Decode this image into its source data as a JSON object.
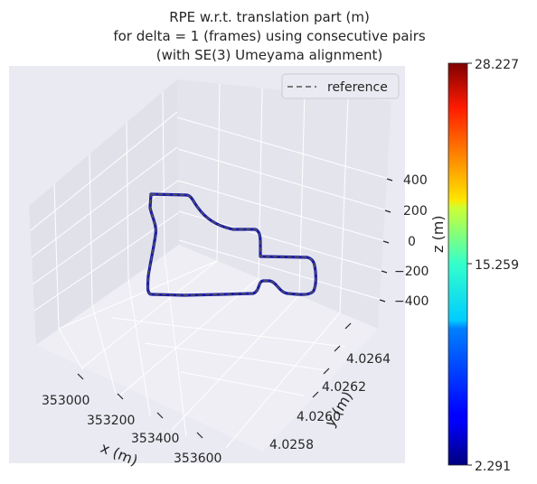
{
  "chart_data": {
    "type": "line",
    "projection": "3d",
    "title_lines": [
      "RPE w.r.t. translation part (m)",
      "for delta = 1 (frames) using consecutive pairs",
      "(with SE(3) Umeyama alignment)"
    ],
    "xlabel": "x (m)",
    "ylabel": "y (m)",
    "zlabel": "z (m)",
    "x_ticks": [
      "353000",
      "353200",
      "353400",
      "353600"
    ],
    "y_ticks": [
      "4.0258",
      "4.0260",
      "4.0262",
      "4.0264"
    ],
    "z_ticks": [
      "400",
      "200",
      "0",
      "−200",
      "−400"
    ],
    "legend": {
      "placement": "top-right",
      "entries": [
        "reference"
      ]
    },
    "colorbar": {
      "colormap": "jet",
      "min": 2.291,
      "mid": 15.259,
      "max": 28.227,
      "tick_labels": [
        "28.227",
        "15.259",
        "2.291"
      ]
    },
    "reference_style": "dashed",
    "estimate_color": "#1a1aa8",
    "reference_color": "#555555",
    "pane_color": "#eaeaf2",
    "grid": true
  }
}
